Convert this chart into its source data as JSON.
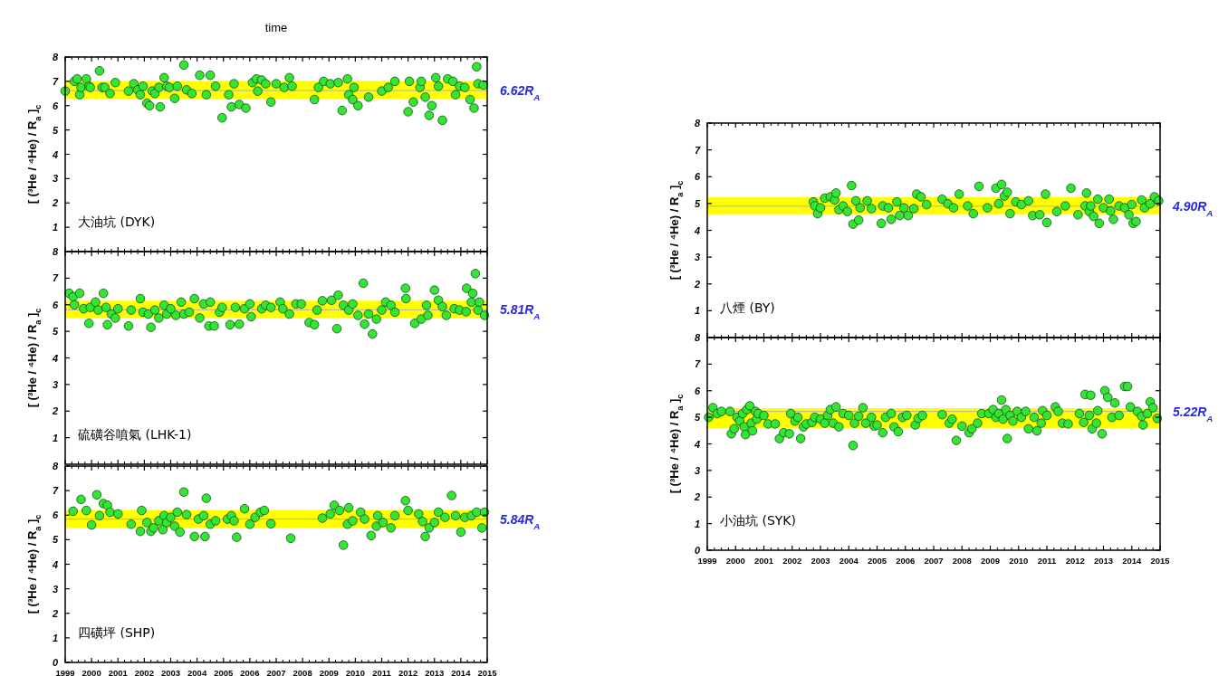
{
  "chart_data": [
    {
      "type": "scatter",
      "title": "time",
      "ylabel": "[ (³He / ⁴He) / R$_{a}$ ]$_{c}$",
      "color": "#33e633",
      "marker": "circle",
      "xlim": [
        1999,
        2015
      ],
      "xticks": [
        1999,
        2000,
        2001,
        2002,
        2003,
        2004,
        2005,
        2006,
        2007,
        2008,
        2009,
        2010,
        2011,
        2012,
        2013,
        2014,
        2015
      ],
      "ylim": [
        0,
        8
      ],
      "yticks": [
        1,
        2,
        3,
        4,
        5,
        6,
        7,
        8
      ],
      "tick_labels": "y",
      "annotations": [
        "大油坑 (DYK)"
      ],
      "bands": [
        {
          "axis": "y",
          "from": 6.28,
          "to": 7.02,
          "color": "#ffff00"
        }
      ],
      "ref_lines": [
        {
          "axis": "y",
          "value": 6.62,
          "label": "6.62R$_{A}$",
          "color": "#b0b0b0"
        }
      ],
      "x": [
        1999.0,
        1999.35,
        1999.45,
        1999.55,
        1999.6,
        1999.8,
        1999.9,
        1999.95,
        2000.3,
        2000.4,
        2000.5,
        2000.7,
        2000.9,
        2001.4,
        2001.6,
        2001.75,
        2001.85,
        2001.95,
        2002.1,
        2002.2,
        2002.3,
        2002.4,
        2002.55,
        2002.6,
        2002.75,
        2002.85,
        2002.95,
        2003.15,
        2003.25,
        2003.5,
        2003.6,
        2003.8,
        2004.1,
        2004.35,
        2004.5,
        2004.7,
        2004.95,
        2005.2,
        2005.3,
        2005.4,
        2005.6,
        2005.85,
        2006.1,
        2006.25,
        2006.3,
        2006.45,
        2006.6,
        2006.8,
        2007.0,
        2007.3,
        2007.5,
        2007.6,
        2008.45,
        2008.6,
        2008.8,
        2009.05,
        2009.35,
        2009.5,
        2009.7,
        2009.75,
        2009.9,
        2009.95,
        2010.1,
        2010.5,
        2011.0,
        2011.25,
        2011.5,
        2012.0,
        2012.05,
        2012.2,
        2012.45,
        2012.5,
        2012.65,
        2012.8,
        2012.9,
        2013.05,
        2013.15,
        2013.3,
        2013.5,
        2013.7,
        2013.8,
        2013.95,
        2014.15,
        2014.35,
        2014.5,
        2014.6,
        2014.65,
        2014.85
      ],
      "values": [
        6.6,
        7.0,
        7.1,
        6.45,
        6.75,
        7.1,
        6.8,
        6.75,
        7.43,
        6.75,
        6.75,
        6.5,
        6.95,
        6.6,
        6.9,
        6.65,
        6.45,
        6.8,
        6.1,
        6.0,
        6.6,
        6.5,
        6.75,
        5.95,
        7.15,
        6.8,
        6.75,
        6.3,
        6.8,
        7.67,
        6.65,
        6.5,
        7.25,
        6.45,
        7.25,
        6.8,
        5.5,
        6.45,
        5.95,
        6.9,
        6.05,
        5.9,
        6.95,
        7.1,
        6.6,
        7.05,
        6.9,
        6.15,
        6.9,
        6.75,
        7.15,
        6.8,
        6.25,
        6.75,
        7.0,
        6.9,
        6.95,
        5.8,
        7.1,
        6.45,
        6.25,
        6.75,
        6.0,
        6.35,
        6.6,
        6.75,
        7.0,
        5.75,
        7.0,
        6.15,
        6.75,
        7.0,
        6.35,
        5.6,
        6.0,
        7.15,
        6.8,
        5.4,
        7.1,
        7.0,
        6.45,
        6.8,
        6.75,
        6.25,
        5.9,
        7.6,
        6.9,
        6.85
      ]
    },
    {
      "type": "scatter",
      "ylabel": "[ (³He / ⁴He) / R$_{a}$ ]$_{c}$",
      "color": "#33e633",
      "marker": "circle",
      "xlim": [
        1999,
        2015
      ],
      "xticks": [
        1999,
        2000,
        2001,
        2002,
        2003,
        2004,
        2005,
        2006,
        2007,
        2008,
        2009,
        2010,
        2011,
        2012,
        2013,
        2014,
        2015
      ],
      "ylim": [
        0,
        8
      ],
      "yticks": [
        1,
        2,
        3,
        4,
        5,
        6,
        7,
        8
      ],
      "tick_labels": "y",
      "annotations": [
        "硫磺谷噴氣 (LHK-1)"
      ],
      "bands": [
        {
          "axis": "y",
          "from": 5.5,
          "to": 6.15,
          "color": "#ffff00"
        }
      ],
      "ref_lines": [
        {
          "axis": "y",
          "value": 5.81,
          "label": "5.81R$_{A}$",
          "color": "#b0b0b0"
        }
      ],
      "x": [
        1999.15,
        1999.3,
        1999.35,
        1999.55,
        1999.7,
        1999.9,
        1999.95,
        2000.15,
        2000.25,
        2000.45,
        2000.55,
        2000.6,
        2000.75,
        2000.9,
        2001.0,
        2001.4,
        2001.5,
        2001.85,
        2001.95,
        2002.15,
        2002.25,
        2002.4,
        2002.55,
        2002.75,
        2002.85,
        2003.0,
        2003.2,
        2003.4,
        2003.5,
        2003.7,
        2003.9,
        2004.1,
        2004.25,
        2004.45,
        2004.5,
        2004.65,
        2004.85,
        2004.95,
        2005.25,
        2005.45,
        2005.6,
        2005.8,
        2006.0,
        2006.05,
        2006.45,
        2006.6,
        2006.8,
        2007.15,
        2007.25,
        2007.5,
        2007.75,
        2007.95,
        2008.25,
        2008.45,
        2008.55,
        2008.75,
        2009.1,
        2009.3,
        2009.35,
        2009.55,
        2009.75,
        2009.9,
        2010.1,
        2010.3,
        2010.35,
        2010.5,
        2010.65,
        2010.8,
        2011.0,
        2011.15,
        2011.35,
        2011.5,
        2011.9,
        2011.92,
        2012.25,
        2012.5,
        2012.7,
        2012.75,
        2013.0,
        2013.15,
        2013.3,
        2013.45,
        2013.75,
        2013.95,
        2014.2,
        2014.22,
        2014.4,
        2014.45,
        2014.55,
        2014.65,
        2014.7,
        2014.9
      ],
      "values": [
        6.43,
        6.3,
        6.0,
        6.43,
        5.85,
        5.3,
        5.9,
        6.1,
        5.8,
        6.43,
        5.9,
        5.25,
        5.65,
        5.5,
        5.85,
        5.2,
        5.8,
        6.23,
        5.72,
        5.65,
        5.15,
        5.8,
        5.5,
        5.98,
        5.65,
        5.85,
        5.6,
        6.1,
        5.65,
        5.72,
        6.23,
        5.5,
        6.03,
        5.2,
        6.1,
        5.2,
        5.72,
        5.9,
        5.25,
        5.9,
        5.27,
        5.85,
        6.03,
        5.55,
        5.85,
        5.98,
        5.9,
        6.1,
        5.85,
        5.65,
        6.03,
        6.03,
        5.33,
        5.25,
        5.8,
        6.15,
        6.17,
        5.1,
        6.36,
        5.98,
        5.8,
        6.03,
        5.6,
        6.81,
        5.27,
        5.65,
        4.9,
        5.46,
        5.8,
        6.1,
        5.98,
        5.72,
        6.62,
        6.23,
        5.3,
        5.46,
        5.98,
        5.6,
        6.55,
        6.17,
        5.93,
        5.6,
        5.85,
        5.8,
        5.74,
        6.62,
        6.1,
        6.43,
        7.17,
        5.8,
        6.1,
        5.6
      ]
    },
    {
      "type": "scatter",
      "ylabel": "[ (³He / ⁴He) / R$_{a}$ ]$_{c}$",
      "color": "#33e633",
      "marker": "circle",
      "xlim": [
        1999,
        2015
      ],
      "xticks": [
        1999,
        2000,
        2001,
        2002,
        2003,
        2004,
        2005,
        2006,
        2007,
        2008,
        2009,
        2010,
        2011,
        2012,
        2013,
        2014,
        2015
      ],
      "ylim": [
        0,
        8
      ],
      "yticks": [
        0,
        1,
        2,
        3,
        4,
        5,
        6,
        7,
        8
      ],
      "annotations": [
        "四磺坪 (SHP)"
      ],
      "bands": [
        {
          "axis": "y",
          "from": 5.47,
          "to": 6.21,
          "color": "#ffff00"
        }
      ],
      "ref_lines": [
        {
          "axis": "y",
          "value": 5.84,
          "label": "5.84R$_{A}$",
          "color": "#b0b0b0"
        }
      ],
      "x": [
        1999.3,
        1999.6,
        1999.8,
        2000.0,
        2000.2,
        2000.3,
        2000.45,
        2000.6,
        2000.7,
        2001.0,
        2001.5,
        2001.85,
        2001.9,
        2002.1,
        2002.25,
        2002.35,
        2002.55,
        2002.7,
        2002.75,
        2002.85,
        2003.0,
        2003.15,
        2003.25,
        2003.35,
        2003.5,
        2003.6,
        2003.9,
        2004.05,
        2004.25,
        2004.3,
        2004.35,
        2004.5,
        2004.7,
        2005.15,
        2005.3,
        2005.4,
        2005.5,
        2005.8,
        2006.0,
        2006.2,
        2006.4,
        2006.55,
        2006.8,
        2007.55,
        2008.75,
        2009.05,
        2009.2,
        2009.4,
        2009.55,
        2009.7,
        2009.75,
        2009.9,
        2010.2,
        2010.35,
        2010.6,
        2010.8,
        2010.85,
        2011.05,
        2011.35,
        2011.5,
        2011.9,
        2012.0,
        2012.4,
        2012.55,
        2012.65,
        2012.8,
        2013.0,
        2013.15,
        2013.4,
        2013.65,
        2013.8,
        2014.0,
        2014.15,
        2014.4,
        2014.6,
        2014.8,
        2014.9
      ],
      "values": [
        6.16,
        6.64,
        6.19,
        5.6,
        6.83,
        5.98,
        6.47,
        6.4,
        6.12,
        6.05,
        5.63,
        5.34,
        6.19,
        5.7,
        5.34,
        5.48,
        5.77,
        5.41,
        5.98,
        5.7,
        5.91,
        5.55,
        6.12,
        5.31,
        6.94,
        6.02,
        5.13,
        5.84,
        5.98,
        5.13,
        6.69,
        5.63,
        5.77,
        5.84,
        5.98,
        5.77,
        5.1,
        6.26,
        5.63,
        5.91,
        6.12,
        6.19,
        5.65,
        5.06,
        5.88,
        6.05,
        6.4,
        6.19,
        4.78,
        5.63,
        6.3,
        5.77,
        6.12,
        5.84,
        5.17,
        5.55,
        5.98,
        5.7,
        5.48,
        5.98,
        6.59,
        6.19,
        6.05,
        5.74,
        5.13,
        5.48,
        5.7,
        6.12,
        5.91,
        6.8,
        5.98,
        5.31,
        5.91,
        5.98,
        6.12,
        5.48,
        6.12
      ]
    },
    {
      "type": "scatter",
      "ylabel": "[ (³He / ⁴He) / R$_{a}$ ]$_{c}$",
      "color": "#33e633",
      "marker": "circle",
      "xlim": [
        1999,
        2015
      ],
      "xticks": [
        1999,
        2000,
        2001,
        2002,
        2003,
        2004,
        2005,
        2006,
        2007,
        2008,
        2009,
        2010,
        2011,
        2012,
        2013,
        2014,
        2015
      ],
      "ylim": [
        0,
        8
      ],
      "yticks": [
        1,
        2,
        3,
        4,
        5,
        6,
        7,
        8
      ],
      "tick_labels": "y",
      "annotations": [
        "八煙 (BY)"
      ],
      "bands": [
        {
          "axis": "y",
          "from": 4.6,
          "to": 5.24,
          "color": "#ffff00"
        }
      ],
      "ref_lines": [
        {
          "axis": "y",
          "value": 4.9,
          "label": "4.90R$_{A}$",
          "color": "#b0b0b0"
        }
      ],
      "x": [
        2002.75,
        2002.8,
        2002.9,
        2003.0,
        2003.15,
        2003.35,
        2003.5,
        2003.55,
        2003.65,
        2003.8,
        2003.95,
        2004.1,
        2004.15,
        2004.25,
        2004.35,
        2004.4,
        2004.65,
        2004.8,
        2005.15,
        2005.2,
        2005.4,
        2005.5,
        2005.7,
        2005.8,
        2005.95,
        2006.1,
        2006.3,
        2006.4,
        2006.55,
        2006.75,
        2007.3,
        2007.5,
        2007.7,
        2007.9,
        2008.2,
        2008.4,
        2008.6,
        2008.9,
        2009.2,
        2009.3,
        2009.4,
        2009.5,
        2009.6,
        2009.7,
        2009.9,
        2010.1,
        2010.35,
        2010.5,
        2010.75,
        2010.95,
        2011.0,
        2011.35,
        2011.65,
        2011.85,
        2012.1,
        2012.35,
        2012.4,
        2012.5,
        2012.55,
        2012.65,
        2012.8,
        2012.85,
        2013.0,
        2013.2,
        2013.25,
        2013.35,
        2013.55,
        2013.75,
        2013.9,
        2014.0,
        2014.05,
        2014.15,
        2014.35,
        2014.45,
        2014.65,
        2014.8,
        2014.95
      ],
      "values": [
        5.06,
        4.91,
        4.62,
        4.84,
        5.2,
        5.25,
        5.13,
        5.39,
        4.77,
        4.91,
        4.7,
        5.67,
        4.23,
        5.1,
        4.38,
        4.84,
        5.1,
        4.81,
        4.26,
        4.91,
        4.84,
        4.41,
        5.06,
        4.55,
        4.84,
        4.55,
        4.81,
        5.35,
        5.25,
        4.96,
        5.16,
        4.99,
        4.84,
        5.35,
        4.91,
        4.62,
        5.64,
        4.84,
        5.57,
        4.99,
        5.71,
        5.28,
        5.42,
        4.62,
        5.06,
        4.96,
        5.1,
        4.55,
        4.58,
        5.35,
        4.29,
        4.7,
        4.91,
        5.57,
        4.58,
        4.91,
        5.39,
        4.7,
        4.91,
        4.52,
        5.16,
        4.26,
        4.84,
        5.16,
        4.72,
        4.41,
        4.91,
        4.84,
        4.58,
        4.96,
        4.26,
        4.33,
        5.13,
        4.84,
        4.99,
        5.25,
        5.1
      ]
    },
    {
      "type": "scatter",
      "ylabel": "[ (³He / ⁴He) / R$_{a}$ ]$_{c}$",
      "color": "#33e633",
      "marker": "circle",
      "xlim": [
        1999,
        2015
      ],
      "xticks": [
        1999,
        2000,
        2001,
        2002,
        2003,
        2004,
        2005,
        2006,
        2007,
        2008,
        2009,
        2010,
        2011,
        2012,
        2013,
        2014,
        2015
      ],
      "ylim": [
        0,
        8
      ],
      "yticks": [
        0,
        1,
        2,
        3,
        4,
        5,
        6,
        7,
        8
      ],
      "annotations": [
        "小油坑 (SYK)"
      ],
      "bands": [
        {
          "axis": "y",
          "from": 4.6,
          "to": 5.34,
          "color": "#ffff00"
        }
      ],
      "ref_lines": [
        {
          "axis": "y",
          "value": 5.22,
          "label": "5.22R$_{A}$",
          "color": "#b0b0b0"
        }
      ],
      "x": [
        1999.05,
        1999.2,
        1999.35,
        1999.5,
        1999.8,
        1999.85,
        1999.95,
        2000.05,
        2000.15,
        2000.25,
        2000.3,
        2000.35,
        2000.4,
        2000.5,
        2000.55,
        2000.6,
        2000.7,
        2000.75,
        2000.8,
        2001.0,
        2001.15,
        2001.4,
        2001.55,
        2001.7,
        2001.9,
        2001.95,
        2002.1,
        2002.2,
        2002.3,
        2002.4,
        2002.5,
        2002.7,
        2002.8,
        2003.0,
        2003.15,
        2003.25,
        2003.35,
        2003.45,
        2003.55,
        2003.65,
        2003.8,
        2004.0,
        2004.15,
        2004.2,
        2004.35,
        2004.5,
        2004.6,
        2004.8,
        2004.9,
        2005.0,
        2005.2,
        2005.3,
        2005.5,
        2005.6,
        2005.75,
        2005.9,
        2006.05,
        2006.35,
        2006.45,
        2006.6,
        2007.3,
        2007.55,
        2007.65,
        2007.8,
        2008.0,
        2008.25,
        2008.35,
        2008.55,
        2008.7,
        2008.95,
        2009.1,
        2009.2,
        2009.3,
        2009.4,
        2009.45,
        2009.55,
        2009.6,
        2009.7,
        2009.8,
        2009.95,
        2010.1,
        2010.25,
        2010.35,
        2010.55,
        2010.65,
        2010.8,
        2010.85,
        2011.0,
        2011.3,
        2011.4,
        2011.55,
        2011.75,
        2012.15,
        2012.3,
        2012.35,
        2012.5,
        2012.55,
        2012.6,
        2012.75,
        2012.8,
        2012.95,
        2013.05,
        2013.15,
        2013.3,
        2013.4,
        2013.55,
        2013.75,
        2013.85,
        2013.95,
        2014.2,
        2014.35,
        2014.4,
        2014.55,
        2014.65,
        2014.75,
        2014.9
      ],
      "values": [
        5.0,
        5.36,
        5.14,
        5.22,
        5.22,
        4.38,
        4.57,
        5.0,
        4.86,
        5.14,
        4.64,
        4.35,
        5.29,
        5.43,
        4.78,
        4.49,
        5.22,
        4.93,
        5.14,
        5.07,
        4.75,
        4.75,
        4.2,
        4.42,
        4.38,
        5.14,
        4.86,
        5.0,
        4.2,
        4.64,
        4.75,
        4.81,
        5.0,
        4.93,
        4.78,
        5.07,
        5.29,
        4.78,
        5.39,
        4.64,
        5.14,
        5.07,
        3.94,
        4.78,
        5.04,
        5.36,
        4.78,
        5.0,
        4.67,
        4.71,
        4.42,
        5.0,
        5.14,
        4.64,
        4.46,
        5.0,
        5.07,
        4.71,
        4.96,
        5.07,
        5.1,
        4.78,
        4.93,
        4.13,
        4.67,
        4.42,
        4.57,
        4.78,
        5.14,
        5.14,
        5.29,
        5.0,
        5.14,
        5.65,
        4.93,
        5.29,
        4.2,
        5.07,
        4.86,
        5.22,
        5.0,
        5.22,
        4.57,
        5.0,
        4.49,
        4.78,
        5.25,
        5.07,
        5.39,
        5.22,
        4.78,
        4.75,
        5.14,
        4.81,
        5.86,
        5.07,
        5.83,
        4.57,
        4.78,
        5.25,
        4.38,
        6.0,
        5.75,
        5.0,
        5.54,
        5.07,
        6.16,
        6.16,
        5.39,
        5.22,
        5.04,
        4.71,
        5.14,
        5.58,
        5.36,
        4.96
      ]
    }
  ]
}
